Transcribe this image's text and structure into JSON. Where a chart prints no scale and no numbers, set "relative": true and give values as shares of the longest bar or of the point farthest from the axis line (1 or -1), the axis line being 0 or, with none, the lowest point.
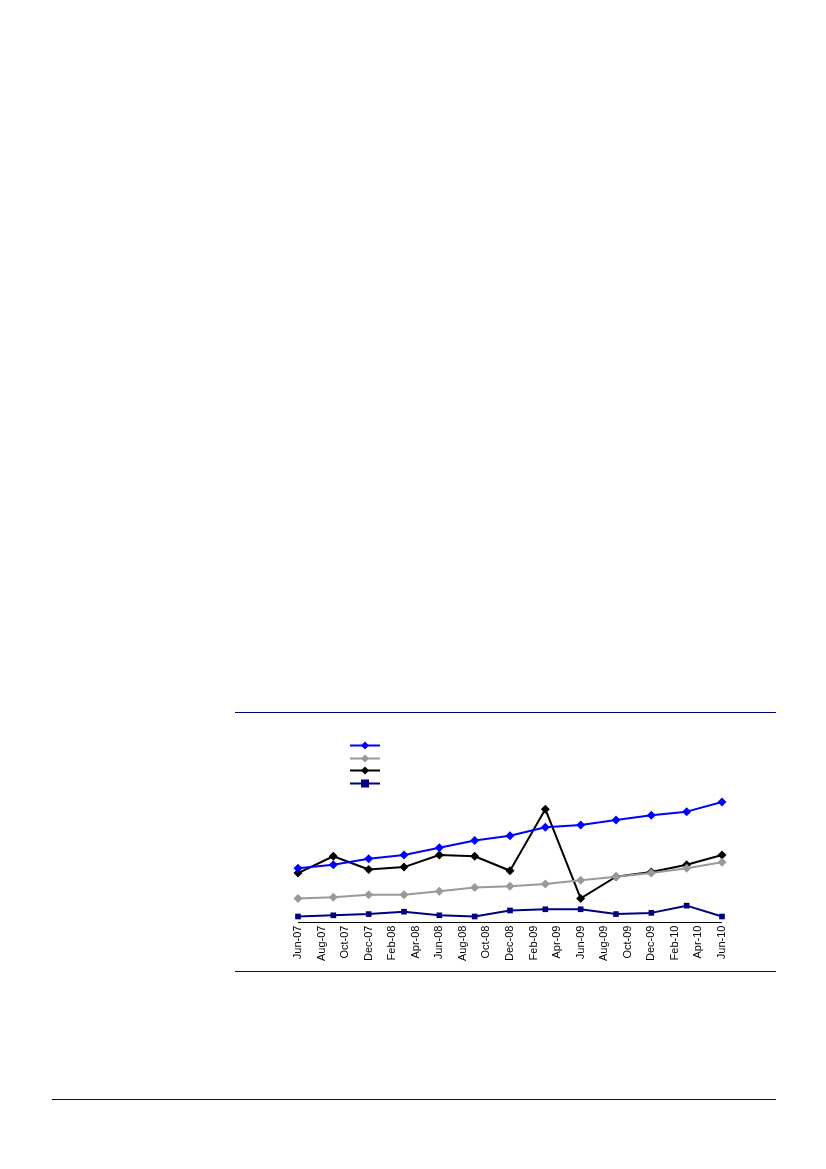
{
  "chart_data": {
    "type": "line",
    "relative": true,
    "x": [
      "2007-06",
      "2007-09",
      "2007-12",
      "2008-03",
      "2008-06",
      "2008-09",
      "2008-12",
      "2009-03",
      "2009-06",
      "2009-09",
      "2009-12",
      "2010-03",
      "2010-06"
    ],
    "xlim": [
      "2007-06",
      "2010-06"
    ],
    "xticks": [
      {
        "value": "2007-06",
        "label": "Jun-07"
      },
      {
        "value": "2007-08",
        "label": "Aug-07"
      },
      {
        "value": "2007-10",
        "label": "Oct-07"
      },
      {
        "value": "2007-12",
        "label": "Dec-07"
      },
      {
        "value": "2008-02",
        "label": "Feb-08"
      },
      {
        "value": "2008-04",
        "label": "Apr-08"
      },
      {
        "value": "2008-06",
        "label": "Jun-08"
      },
      {
        "value": "2008-08",
        "label": "Aug-08"
      },
      {
        "value": "2008-10",
        "label": "Oct-08"
      },
      {
        "value": "2008-12",
        "label": "Dec-08"
      },
      {
        "value": "2009-02",
        "label": "Feb-09"
      },
      {
        "value": "2009-04",
        "label": "Apr-09"
      },
      {
        "value": "2009-06",
        "label": "Jun-09"
      },
      {
        "value": "2009-08",
        "label": "Aug-09"
      },
      {
        "value": "2009-10",
        "label": "Oct-09"
      },
      {
        "value": "2009-12",
        "label": "Dec-09"
      },
      {
        "value": "2010-02",
        "label": "Feb-10"
      },
      {
        "value": "2010-04",
        "label": "Apr-10"
      },
      {
        "value": "2010-06",
        "label": "Jun-10"
      }
    ],
    "series": [
      {
        "color": "#0000ff",
        "marker": "diamond",
        "values": [
          0.45,
          0.48,
          0.53,
          0.56,
          0.62,
          0.68,
          0.72,
          0.79,
          0.81,
          0.85,
          0.89,
          0.92,
          1
        ]
      },
      {
        "color": "#999999",
        "marker": "diamond",
        "values": [
          0.2,
          0.21,
          0.23,
          0.23,
          0.26,
          0.29,
          0.3,
          0.32,
          0.35,
          0.38,
          0.41,
          0.45,
          0.5
        ]
      },
      {
        "color": "#000000",
        "marker": "diamond",
        "values": [
          0.41,
          0.55,
          0.44,
          0.46,
          0.56,
          0.55,
          0.43,
          0.94,
          0.2,
          0.38,
          0.42,
          0.48,
          0.56
        ]
      },
      {
        "color": "#000080",
        "marker": "square",
        "values": [
          0.05,
          0.06,
          0.07,
          0.09,
          0.06,
          0.05,
          0.1,
          0.11,
          0.11,
          0.07,
          0.08,
          0.14,
          0.05
        ]
      }
    ]
  }
}
